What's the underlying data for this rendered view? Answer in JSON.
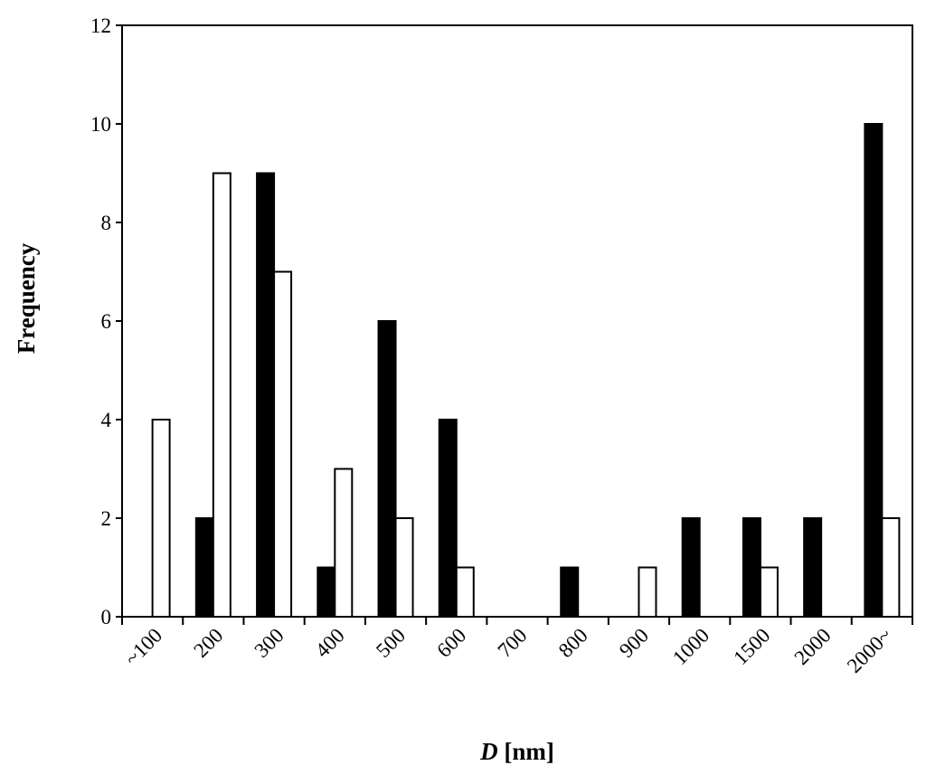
{
  "chart_data": {
    "type": "bar",
    "title": "",
    "xlabel_italic": "D",
    "xlabel_rest": " [nm]",
    "ylabel": "Frequency",
    "ylim": [
      0,
      12
    ],
    "yticks": [
      "0",
      "2",
      "4",
      "6",
      "8",
      "10",
      "12"
    ],
    "categories": [
      "~100",
      "200",
      "300",
      "400",
      "500",
      "600",
      "700",
      "800",
      "900",
      "1000",
      "1500",
      "2000",
      "2000~"
    ],
    "series": [
      {
        "fill": "#000000",
        "values": [
          0,
          2,
          9,
          1,
          6,
          4,
          0,
          1,
          0,
          2,
          2,
          2,
          10
        ]
      },
      {
        "fill": "#ffffff",
        "values": [
          4,
          9,
          7,
          3,
          2,
          1,
          0,
          0,
          1,
          0,
          1,
          0,
          2
        ]
      }
    ],
    "grid": false,
    "legend": "none"
  }
}
